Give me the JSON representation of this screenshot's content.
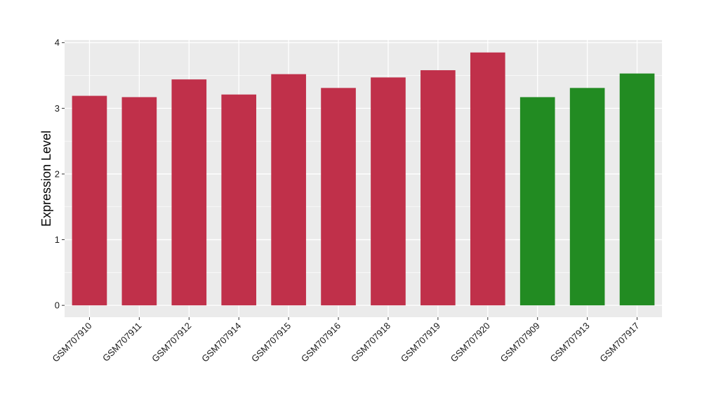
{
  "chart_data": {
    "type": "bar",
    "title": "",
    "xlabel": "",
    "ylabel": "Expression Level",
    "categories": [
      "GSM707910",
      "GSM707911",
      "GSM707912",
      "GSM707914",
      "GSM707915",
      "GSM707916",
      "GSM707918",
      "GSM707919",
      "GSM707920",
      "GSM707909",
      "GSM707913",
      "GSM707917"
    ],
    "values": [
      3.19,
      3.17,
      3.44,
      3.21,
      3.52,
      3.31,
      3.47,
      3.58,
      3.85,
      3.17,
      3.31,
      3.53
    ],
    "bar_colors": [
      "#C0304A",
      "#C0304A",
      "#C0304A",
      "#C0304A",
      "#C0304A",
      "#C0304A",
      "#C0304A",
      "#C0304A",
      "#C0304A",
      "#228B22",
      "#228B22",
      "#228B22"
    ],
    "ylim": [
      -0.18,
      4.04
    ],
    "yticks": [
      0,
      1,
      2,
      3,
      4
    ],
    "grid": true,
    "panel_background": "#EBEBEB",
    "grid_color": "#FFFFFF"
  }
}
